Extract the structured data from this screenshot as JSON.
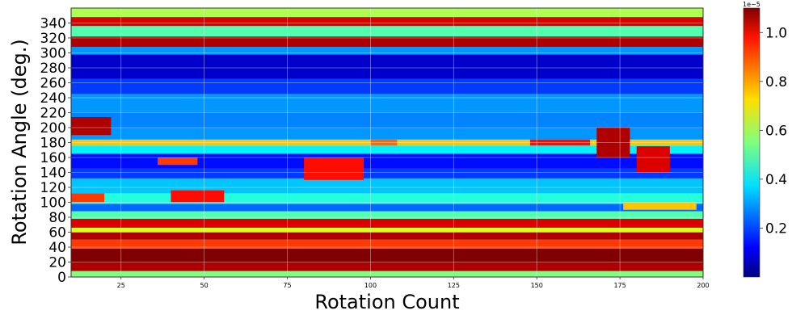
{
  "chart_data": {
    "type": "heatmap",
    "title": "",
    "xlabel": "Rotation Count",
    "ylabel": "Rotation Angle (deg.)",
    "xlim": [
      10,
      200
    ],
    "ylim": [
      0,
      360
    ],
    "x_ticks": [
      25,
      50,
      75,
      100,
      125,
      150,
      175,
      200
    ],
    "x_tick_labels": [
      "25",
      "50",
      "75",
      "100",
      "125",
      "150",
      "175",
      "200"
    ],
    "y_ticks": [
      0,
      20,
      40,
      60,
      80,
      100,
      120,
      140,
      160,
      180,
      200,
      220,
      240,
      260,
      280,
      300,
      320,
      340
    ],
    "y_tick_labels": [
      "0",
      "20",
      "40",
      "60",
      "80",
      "100",
      "120",
      "140",
      "160",
      "180",
      "200",
      "220",
      "240",
      "260",
      "280",
      "300",
      "320",
      "340"
    ],
    "grid": true,
    "colormap": "jet",
    "colorbar": {
      "label": "",
      "multiplier": "1e−5",
      "range": [
        0,
        1.1e-05
      ],
      "ticks": [
        0.2,
        0.4,
        0.6,
        0.8,
        1.0
      ],
      "tick_labels": [
        "0.2",
        "0.4",
        "0.6",
        "0.8",
        "1.0"
      ]
    },
    "bands": [
      {
        "y": [
          0,
          8
        ],
        "value": 0.55
      },
      {
        "y": [
          8,
          20
        ],
        "value": 1.05
      },
      {
        "y": [
          20,
          38
        ],
        "value": 1.1
      },
      {
        "y": [
          38,
          50
        ],
        "value": 0.9
      },
      {
        "y": [
          50,
          60
        ],
        "value": 1.05
      },
      {
        "y": [
          60,
          66
        ],
        "value": 0.65
      },
      {
        "y": [
          66,
          78
        ],
        "value": 1.0
      },
      {
        "y": [
          78,
          88
        ],
        "value": 0.5
      },
      {
        "y": [
          88,
          98
        ],
        "value": 0.25
      },
      {
        "y": [
          98,
          112
        ],
        "value": 0.45
      },
      {
        "y": [
          112,
          132
        ],
        "value": 0.35
      },
      {
        "y": [
          132,
          145
        ],
        "value": 0.2
      },
      {
        "y": [
          145,
          165
        ],
        "value": 0.15
      },
      {
        "y": [
          165,
          176
        ],
        "value": 0.4
      },
      {
        "y": [
          176,
          184
        ],
        "value": 0.75
      },
      {
        "y": [
          184,
          198
        ],
        "value": 0.3
      },
      {
        "y": [
          198,
          222
        ],
        "value": 0.28
      },
      {
        "y": [
          222,
          245
        ],
        "value": 0.3
      },
      {
        "y": [
          245,
          265
        ],
        "value": 0.2
      },
      {
        "y": [
          265,
          298
        ],
        "value": 0.08
      },
      {
        "y": [
          298,
          308
        ],
        "value": 0.3
      },
      {
        "y": [
          308,
          322
        ],
        "value": 1.05
      },
      {
        "y": [
          322,
          336
        ],
        "value": 0.5
      },
      {
        "y": [
          336,
          348
        ],
        "value": 1.0
      },
      {
        "y": [
          348,
          360
        ],
        "value": 0.6
      }
    ],
    "patches": [
      {
        "x": [
          10,
          22
        ],
        "y": [
          190,
          214
        ],
        "value": 1.05
      },
      {
        "x": [
          10,
          20
        ],
        "y": [
          100,
          112
        ],
        "value": 0.9
      },
      {
        "x": [
          148,
          166
        ],
        "y": [
          176,
          184
        ],
        "value": 0.95
      },
      {
        "x": [
          168,
          178
        ],
        "y": [
          160,
          200
        ],
        "value": 1.05
      },
      {
        "x": [
          180,
          190
        ],
        "y": [
          140,
          175
        ],
        "value": 1.0
      },
      {
        "x": [
          80,
          98
        ],
        "y": [
          130,
          160
        ],
        "value": 0.95
      },
      {
        "x": [
          40,
          56
        ],
        "y": [
          100,
          116
        ],
        "value": 0.95
      },
      {
        "x": [
          36,
          48
        ],
        "y": [
          150,
          160
        ],
        "value": 0.9
      },
      {
        "x": [
          176,
          198
        ],
        "y": [
          90,
          100
        ],
        "value": 0.75
      },
      {
        "x": [
          100,
          108
        ],
        "y": [
          176,
          184
        ],
        "value": 0.85
      }
    ]
  }
}
